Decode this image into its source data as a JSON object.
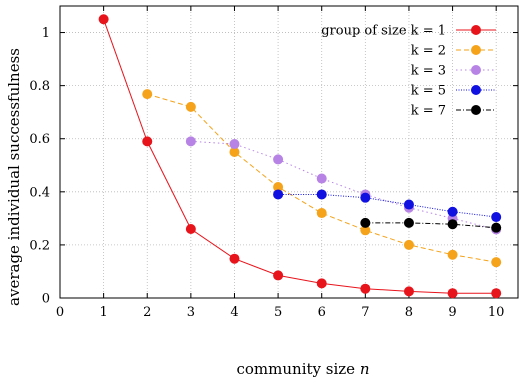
{
  "chart_data": {
    "type": "line",
    "xlabel_prefix": "community size ",
    "xlabel_var": "n",
    "ylabel": "average individual successfulness",
    "xlim": [
      0,
      10.5
    ],
    "ylim": [
      0,
      1.1
    ],
    "x_ticks": [
      0,
      1,
      2,
      3,
      4,
      5,
      6,
      7,
      8,
      9,
      10
    ],
    "y_ticks": [
      0,
      0.2,
      0.4,
      0.6,
      0.8,
      1
    ],
    "y_tick_labels": [
      "0",
      "0.2",
      "0.4",
      "0.6",
      "0.8",
      "1"
    ],
    "grid": true,
    "legend_position": "top-right",
    "series": [
      {
        "name": "group of size k = 1",
        "color": "#e8141c",
        "line_style": "solid",
        "x": [
          1,
          2,
          3,
          4,
          5,
          6,
          7,
          8,
          9,
          10
        ],
        "y": [
          1.05,
          0.59,
          0.26,
          0.148,
          0.085,
          0.055,
          0.035,
          0.025,
          0.018,
          0.018
        ]
      },
      {
        "name": "k = 2",
        "color": "#f5a31a",
        "line_style": "dashed",
        "x": [
          2,
          3,
          4,
          5,
          6,
          7,
          8,
          9,
          10
        ],
        "y": [
          0.768,
          0.72,
          0.55,
          0.418,
          0.32,
          0.255,
          0.2,
          0.163,
          0.135
        ]
      },
      {
        "name": "k = 3",
        "color": "#b784e6",
        "line_style": "dotted",
        "x": [
          3,
          4,
          5,
          6,
          7,
          8,
          9,
          10
        ],
        "y": [
          0.59,
          0.58,
          0.522,
          0.45,
          0.39,
          0.34,
          0.3,
          0.258
        ]
      },
      {
        "name": "k = 5",
        "color": "#1010e0",
        "line_style": "densedot",
        "x": [
          5,
          6,
          7,
          8,
          9,
          10
        ],
        "y": [
          0.39,
          0.39,
          0.378,
          0.352,
          0.325,
          0.305
        ]
      },
      {
        "name": "k = 7",
        "color": "#000000",
        "line_style": "dashdot",
        "x": [
          7,
          8,
          9,
          10
        ],
        "y": [
          0.283,
          0.283,
          0.278,
          0.265
        ]
      }
    ]
  }
}
